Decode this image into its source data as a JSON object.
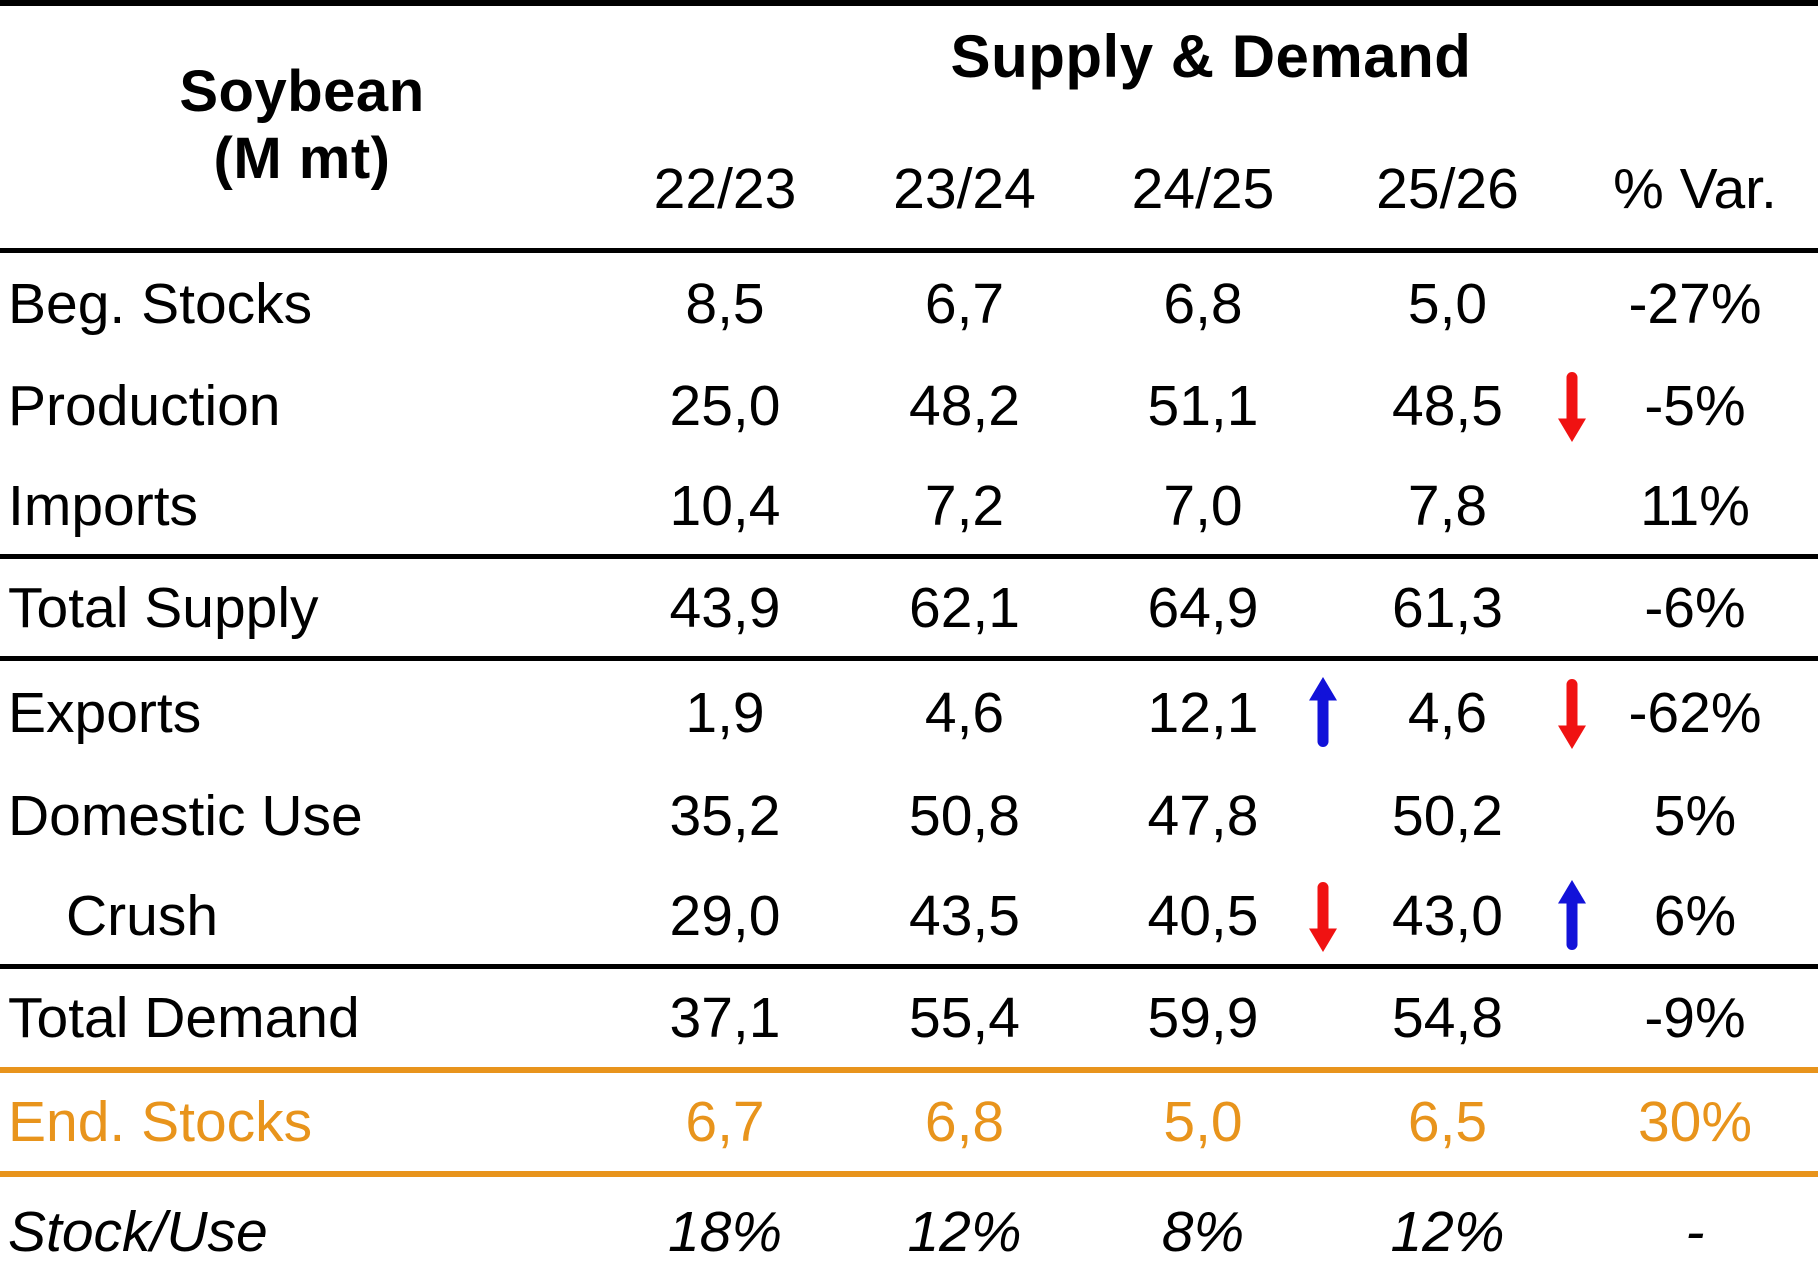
{
  "colors": {
    "accent_orange": "#e8941c",
    "arrow_up_blue": "#1212d9",
    "arrow_down_red": "#f01212",
    "text_black": "#000000"
  },
  "chart_data": {
    "type": "table",
    "title": "Supply & Demand",
    "row_header_line1": "Soybean",
    "row_header_line2": "(M mt)",
    "columns": [
      "22/23",
      "23/24",
      "24/25",
      "25/26",
      "% Var."
    ],
    "rows": [
      {
        "label": "Beg. Stocks",
        "indent": false,
        "emphasis": null,
        "rule_below": null,
        "values": [
          "8,5",
          "6,7",
          "6,8",
          "5,0",
          "-27%"
        ],
        "arrows": [
          null,
          null,
          null,
          null,
          null
        ]
      },
      {
        "label": "Production",
        "indent": false,
        "emphasis": null,
        "rule_below": null,
        "values": [
          "25,0",
          "48,2",
          "51,1",
          "48,5",
          "-5%"
        ],
        "arrows": [
          null,
          null,
          null,
          "down",
          null
        ]
      },
      {
        "label": "Imports",
        "indent": false,
        "emphasis": null,
        "rule_below": "black",
        "values": [
          "10,4",
          "7,2",
          "7,0",
          "7,8",
          "11%"
        ],
        "arrows": [
          null,
          null,
          null,
          null,
          null
        ]
      },
      {
        "label": "Total Supply",
        "indent": false,
        "emphasis": null,
        "rule_below": "black",
        "values": [
          "43,9",
          "62,1",
          "64,9",
          "61,3",
          "-6%"
        ],
        "arrows": [
          null,
          null,
          null,
          null,
          null
        ]
      },
      {
        "label": "Exports",
        "indent": false,
        "emphasis": null,
        "rule_below": null,
        "values": [
          "1,9",
          "4,6",
          "12,1",
          "4,6",
          "-62%"
        ],
        "arrows": [
          null,
          null,
          "up",
          "down",
          null
        ]
      },
      {
        "label": "Domestic Use",
        "indent": false,
        "emphasis": null,
        "rule_below": null,
        "values": [
          "35,2",
          "50,8",
          "47,8",
          "50,2",
          "5%"
        ],
        "arrows": [
          null,
          null,
          null,
          null,
          null
        ]
      },
      {
        "label": "Crush",
        "indent": true,
        "emphasis": null,
        "rule_below": "black",
        "values": [
          "29,0",
          "43,5",
          "40,5",
          "43,0",
          "6%"
        ],
        "arrows": [
          null,
          null,
          "down",
          "up",
          null
        ]
      },
      {
        "label": "Total Demand",
        "indent": false,
        "emphasis": null,
        "rule_below": "orange",
        "values": [
          "37,1",
          "55,4",
          "59,9",
          "54,8",
          "-9%"
        ],
        "arrows": [
          null,
          null,
          null,
          null,
          null
        ]
      },
      {
        "label": "End. Stocks",
        "indent": false,
        "emphasis": "orange",
        "rule_below": "orange",
        "values": [
          "6,7",
          "6,8",
          "5,0",
          "6,5",
          "30%"
        ],
        "arrows": [
          null,
          null,
          null,
          null,
          null
        ]
      },
      {
        "label": "Stock/Use",
        "indent": false,
        "emphasis": "italic",
        "rule_below": null,
        "values": [
          "18%",
          "12%",
          "8%",
          "12%",
          "-"
        ],
        "arrows": [
          null,
          null,
          null,
          null,
          null
        ]
      }
    ]
  }
}
